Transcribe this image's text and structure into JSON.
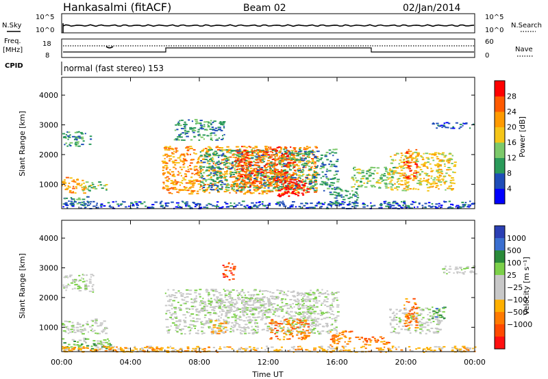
{
  "header": {
    "title": "Hankasalmi (fitACF)",
    "beam": "Beam 02",
    "date": "02/Jan/2014"
  },
  "nsky_panel": {
    "left_label": "N.Sky",
    "right_label": "N.Search",
    "tick_top": "10^5",
    "tick_bottom": "10^0"
  },
  "freq_panel": {
    "label_line1": "Freq.",
    "label_line2": "[MHz]",
    "tick_top": "18",
    "tick_bottom": "8",
    "right_tick_top": "60",
    "right_tick_bottom": "0",
    "right_label": "Nave"
  },
  "cpid": {
    "label": "CPID",
    "value": "normal (fast stereo) 153"
  },
  "colors": {
    "power": [
      "#0000ff",
      "#1e4db8",
      "#2a9a5a",
      "#7cc96a",
      "#f5c518",
      "#ff9a00",
      "#ff5a00",
      "#ff0000"
    ],
    "velocity": [
      "#2b3fb4",
      "#3a6fd0",
      "#2a8a3a",
      "#7cd04a",
      "#c8c8c8",
      "#c8c8c8",
      "#ffb000",
      "#ff7a00",
      "#ff4a00",
      "#ff1010"
    ]
  },
  "chart_data": [
    {
      "type": "heatmap",
      "name": "power",
      "ylabel": "Slant Range [km]",
      "ylim": [
        180,
        4600
      ],
      "yticks": [
        "1000",
        "2000",
        "3000",
        "4000"
      ],
      "xlim_hours": [
        0,
        24
      ],
      "colorbar_label": "Power [dB]",
      "colorbar_ticks": [
        "4",
        "8",
        "12",
        "16",
        "20",
        "24",
        "28"
      ],
      "regions": [
        {
          "x": [
            0.0,
            1.7
          ],
          "y": [
            2300,
            2800
          ],
          "level": 2
        },
        {
          "x": [
            0.0,
            1.4
          ],
          "y": [
            700,
            1250
          ],
          "level": 5
        },
        {
          "x": [
            1.2,
            2.6
          ],
          "y": [
            800,
            1100
          ],
          "level": 3
        },
        {
          "x": [
            0.0,
            1.5
          ],
          "y": [
            300,
            600
          ],
          "level": 2
        },
        {
          "x": [
            5.8,
            14.8
          ],
          "y": [
            700,
            2300
          ],
          "level": 5
        },
        {
          "x": [
            8.0,
            16.0
          ],
          "y": [
            800,
            2200
          ],
          "level": 2
        },
        {
          "x": [
            10.0,
            13.5
          ],
          "y": [
            900,
            2300
          ],
          "level": 6
        },
        {
          "x": [
            12.5,
            14.3
          ],
          "y": [
            600,
            1200
          ],
          "level": 7
        },
        {
          "x": [
            6.5,
            9.5
          ],
          "y": [
            2500,
            3200
          ],
          "level": 2
        },
        {
          "x": [
            15.5,
            17.2
          ],
          "y": [
            300,
            900
          ],
          "level": 2
        },
        {
          "x": [
            16.8,
            19.5
          ],
          "y": [
            900,
            1600
          ],
          "level": 3
        },
        {
          "x": [
            19.0,
            22.8
          ],
          "y": [
            800,
            2100
          ],
          "level": 4
        },
        {
          "x": [
            19.8,
            20.6
          ],
          "y": [
            1200,
            2200
          ],
          "level": 6
        },
        {
          "x": [
            21.5,
            24.0
          ],
          "y": [
            2900,
            3100
          ],
          "level": 1
        },
        {
          "x": [
            0.0,
            24.0
          ],
          "y": [
            200,
            450
          ],
          "level": 1
        }
      ]
    },
    {
      "type": "heatmap",
      "name": "velocity",
      "ylabel": "Slant Range [km]",
      "ylim": [
        180,
        4600
      ],
      "yticks": [
        "1000",
        "2000",
        "3000",
        "4000"
      ],
      "xlabel": "Time UT",
      "xticks": [
        "00:00",
        "04:00",
        "08:00",
        "12:00",
        "16:00",
        "20:00",
        "00:00"
      ],
      "xlim_hours": [
        0,
        24
      ],
      "colorbar_label": "Velocity [m s⁻¹]",
      "colorbar_ticks": [
        "1000",
        "500",
        "100",
        "25",
        "−25",
        "−100",
        "−500",
        "−1000"
      ],
      "regions": [
        {
          "x": [
            0.0,
            1.8
          ],
          "y": [
            2200,
            2800
          ],
          "level": 4
        },
        {
          "x": [
            0.0,
            2.6
          ],
          "y": [
            800,
            1300
          ],
          "level": 4
        },
        {
          "x": [
            0.0,
            3.0
          ],
          "y": [
            300,
            650
          ],
          "level": 3
        },
        {
          "x": [
            0.0,
            8.0
          ],
          "y": [
            180,
            350
          ],
          "level": 6
        },
        {
          "x": [
            6.0,
            16.0
          ],
          "y": [
            800,
            2300
          ],
          "level": 4
        },
        {
          "x": [
            8.0,
            12.5
          ],
          "y": [
            1500,
            2000
          ],
          "level": 4
        },
        {
          "x": [
            12.0,
            14.3
          ],
          "y": [
            600,
            1300
          ],
          "level": 7
        },
        {
          "x": [
            8.5,
            9.5
          ],
          "y": [
            800,
            1300
          ],
          "level": 6
        },
        {
          "x": [
            9.3,
            10.0
          ],
          "y": [
            2600,
            3200
          ],
          "level": 8
        },
        {
          "x": [
            15.5,
            16.8
          ],
          "y": [
            400,
            900
          ],
          "level": 7
        },
        {
          "x": [
            17.0,
            19.0
          ],
          "y": [
            400,
            700
          ],
          "level": 7
        },
        {
          "x": [
            19.0,
            22.0
          ],
          "y": [
            800,
            1700
          ],
          "level": 4
        },
        {
          "x": [
            19.8,
            20.6
          ],
          "y": [
            1000,
            2000
          ],
          "level": 7
        },
        {
          "x": [
            21.5,
            22.2
          ],
          "y": [
            1300,
            1700
          ],
          "level": 2
        },
        {
          "x": [
            22.0,
            24.0
          ],
          "y": [
            2800,
            3100
          ],
          "level": 4
        },
        {
          "x": [
            0.0,
            24.0
          ],
          "y": [
            180,
            380
          ],
          "level": 6
        }
      ]
    }
  ]
}
